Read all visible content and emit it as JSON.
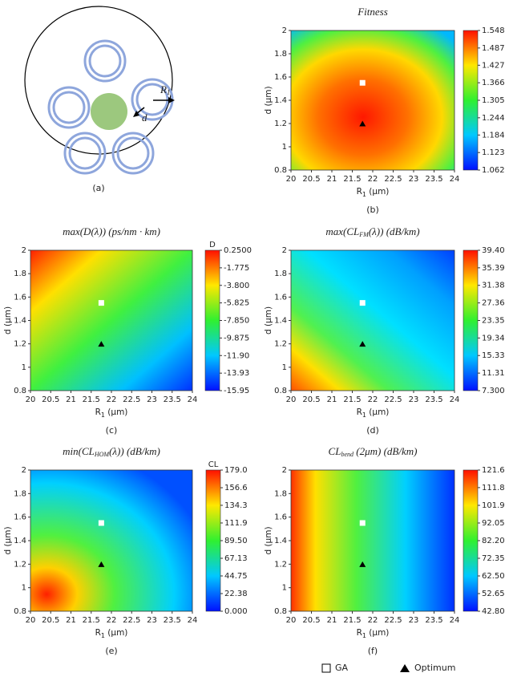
{
  "schematic": {
    "panel_label": "(a)",
    "r_label": [
      "R",
      "1"
    ],
    "d_label": "d"
  },
  "legend": [
    "GA",
    "Optimum"
  ],
  "chart_data": [
    {
      "type": "contour",
      "title": [
        "Fitness"
      ],
      "xlabel": [
        "R",
        "1",
        " (μm)"
      ],
      "ylabel": "d (μm)",
      "panel_label": "(b)",
      "xlim": [
        20,
        24
      ],
      "xticks": [
        20,
        20.5,
        21,
        21.5,
        22,
        22.5,
        23,
        23.5,
        24
      ],
      "ylim": [
        0.8,
        2
      ],
      "yticks": [
        0.8,
        1,
        1.2,
        1.4,
        1.6,
        1.8,
        2
      ],
      "clim": [
        1.062,
        1.548
      ],
      "cticks": [
        1.548,
        1.487,
        1.427,
        1.366,
        1.305,
        1.244,
        1.184,
        1.123,
        1.062
      ],
      "ga": {
        "x": 21.75,
        "y": 1.55
      },
      "optimum": {
        "x": 21.75,
        "y": 1.2
      }
    },
    {
      "type": "contour",
      "title": [
        "max(D(λ)) (ps/nm · km)"
      ],
      "xlabel": [
        "R",
        "1",
        " (μm)"
      ],
      "ylabel": "d (μm)",
      "panel_label": "(c)",
      "colorbar_label": "D",
      "xlim": [
        20,
        24
      ],
      "xticks": [
        20,
        20.5,
        21,
        21.5,
        22,
        22.5,
        23,
        23.5,
        24
      ],
      "ylim": [
        0.8,
        2
      ],
      "yticks": [
        0.8,
        1,
        1.2,
        1.4,
        1.6,
        1.8,
        2
      ],
      "clim": [
        -15.95,
        0.25
      ],
      "cticks": [
        {
          "value": 0.25,
          "label": "0.2500"
        },
        -1.775,
        {
          "value": -3.8,
          "label": "-3.800"
        },
        -5.825,
        {
          "value": -7.85,
          "label": "-7.850"
        },
        -9.875,
        {
          "value": -11.9,
          "label": "-11.90"
        },
        -13.93,
        -15.95
      ],
      "ga": {
        "x": 21.75,
        "y": 1.55
      },
      "optimum": {
        "x": 21.75,
        "y": 1.2
      }
    },
    {
      "type": "contour",
      "title": [
        "max(CL",
        "FM",
        "(λ)) (dB/km)"
      ],
      "xlabel": [
        "R",
        "1",
        " (μm)"
      ],
      "ylabel": "d (μm)",
      "panel_label": "(d)",
      "xlim": [
        20,
        24
      ],
      "xticks": [
        20,
        20.5,
        21,
        21.5,
        22,
        22.5,
        23,
        23.5,
        24
      ],
      "ylim": [
        0.8,
        2
      ],
      "yticks": [
        0.8,
        1,
        1.2,
        1.4,
        1.6,
        1.8,
        2
      ],
      "clim": [
        7.3,
        39.4
      ],
      "cticks": [
        {
          "value": 39.4,
          "label": "39.40"
        },
        35.39,
        31.38,
        27.36,
        23.35,
        19.34,
        15.33,
        11.31,
        {
          "value": 7.3,
          "label": "7.300"
        }
      ],
      "ga": {
        "x": 21.75,
        "y": 1.55
      },
      "optimum": {
        "x": 21.75,
        "y": 1.2
      }
    },
    {
      "type": "contour",
      "title": [
        "min(CL",
        "HOM",
        "(λ)) (dB/km)"
      ],
      "xlabel": [
        "R",
        "1",
        " (μm)"
      ],
      "ylabel": "d (μm)",
      "panel_label": "(e)",
      "colorbar_label": "CL",
      "xlim": [
        20,
        24
      ],
      "xticks": [
        20,
        20.5,
        21,
        21.5,
        22,
        22.5,
        23,
        23.5,
        24
      ],
      "ylim": [
        0.8,
        2
      ],
      "yticks": [
        0.8,
        1,
        1.2,
        1.4,
        1.6,
        1.8,
        2
      ],
      "clim": [
        0,
        179
      ],
      "cticks": [
        {
          "value": 179,
          "label": "179.0"
        },
        156.6,
        134.3,
        111.9,
        {
          "value": 89.5,
          "label": "89.50"
        },
        67.13,
        44.75,
        22.38,
        {
          "value": 0,
          "label": "0.000"
        }
      ],
      "ga": {
        "x": 21.75,
        "y": 1.55
      },
      "optimum": {
        "x": 21.75,
        "y": 1.2
      }
    },
    {
      "type": "contour",
      "title": [
        "CL",
        "bend",
        " (2μm) (dB/km)"
      ],
      "xlabel": [
        "R",
        "1",
        " (μm)"
      ],
      "ylabel": "d (μm)",
      "panel_label": "(f)",
      "xlim": [
        20,
        24
      ],
      "xticks": [
        20,
        20.5,
        21,
        21.5,
        22,
        22.5,
        23,
        23.5,
        24
      ],
      "ylim": [
        0.8,
        2
      ],
      "yticks": [
        0.8,
        1,
        1.2,
        1.4,
        1.6,
        1.8,
        2
      ],
      "clim": [
        42.8,
        121.6
      ],
      "cticks": [
        121.6,
        111.8,
        101.9,
        92.05,
        {
          "value": 82.2,
          "label": "82.20"
        },
        72.35,
        {
          "value": 62.5,
          "label": "62.50"
        },
        52.65,
        {
          "value": 42.8,
          "label": "42.80"
        }
      ],
      "ga": {
        "x": 21.75,
        "y": 1.55
      },
      "optimum": {
        "x": 21.75,
        "y": 1.2
      }
    }
  ]
}
